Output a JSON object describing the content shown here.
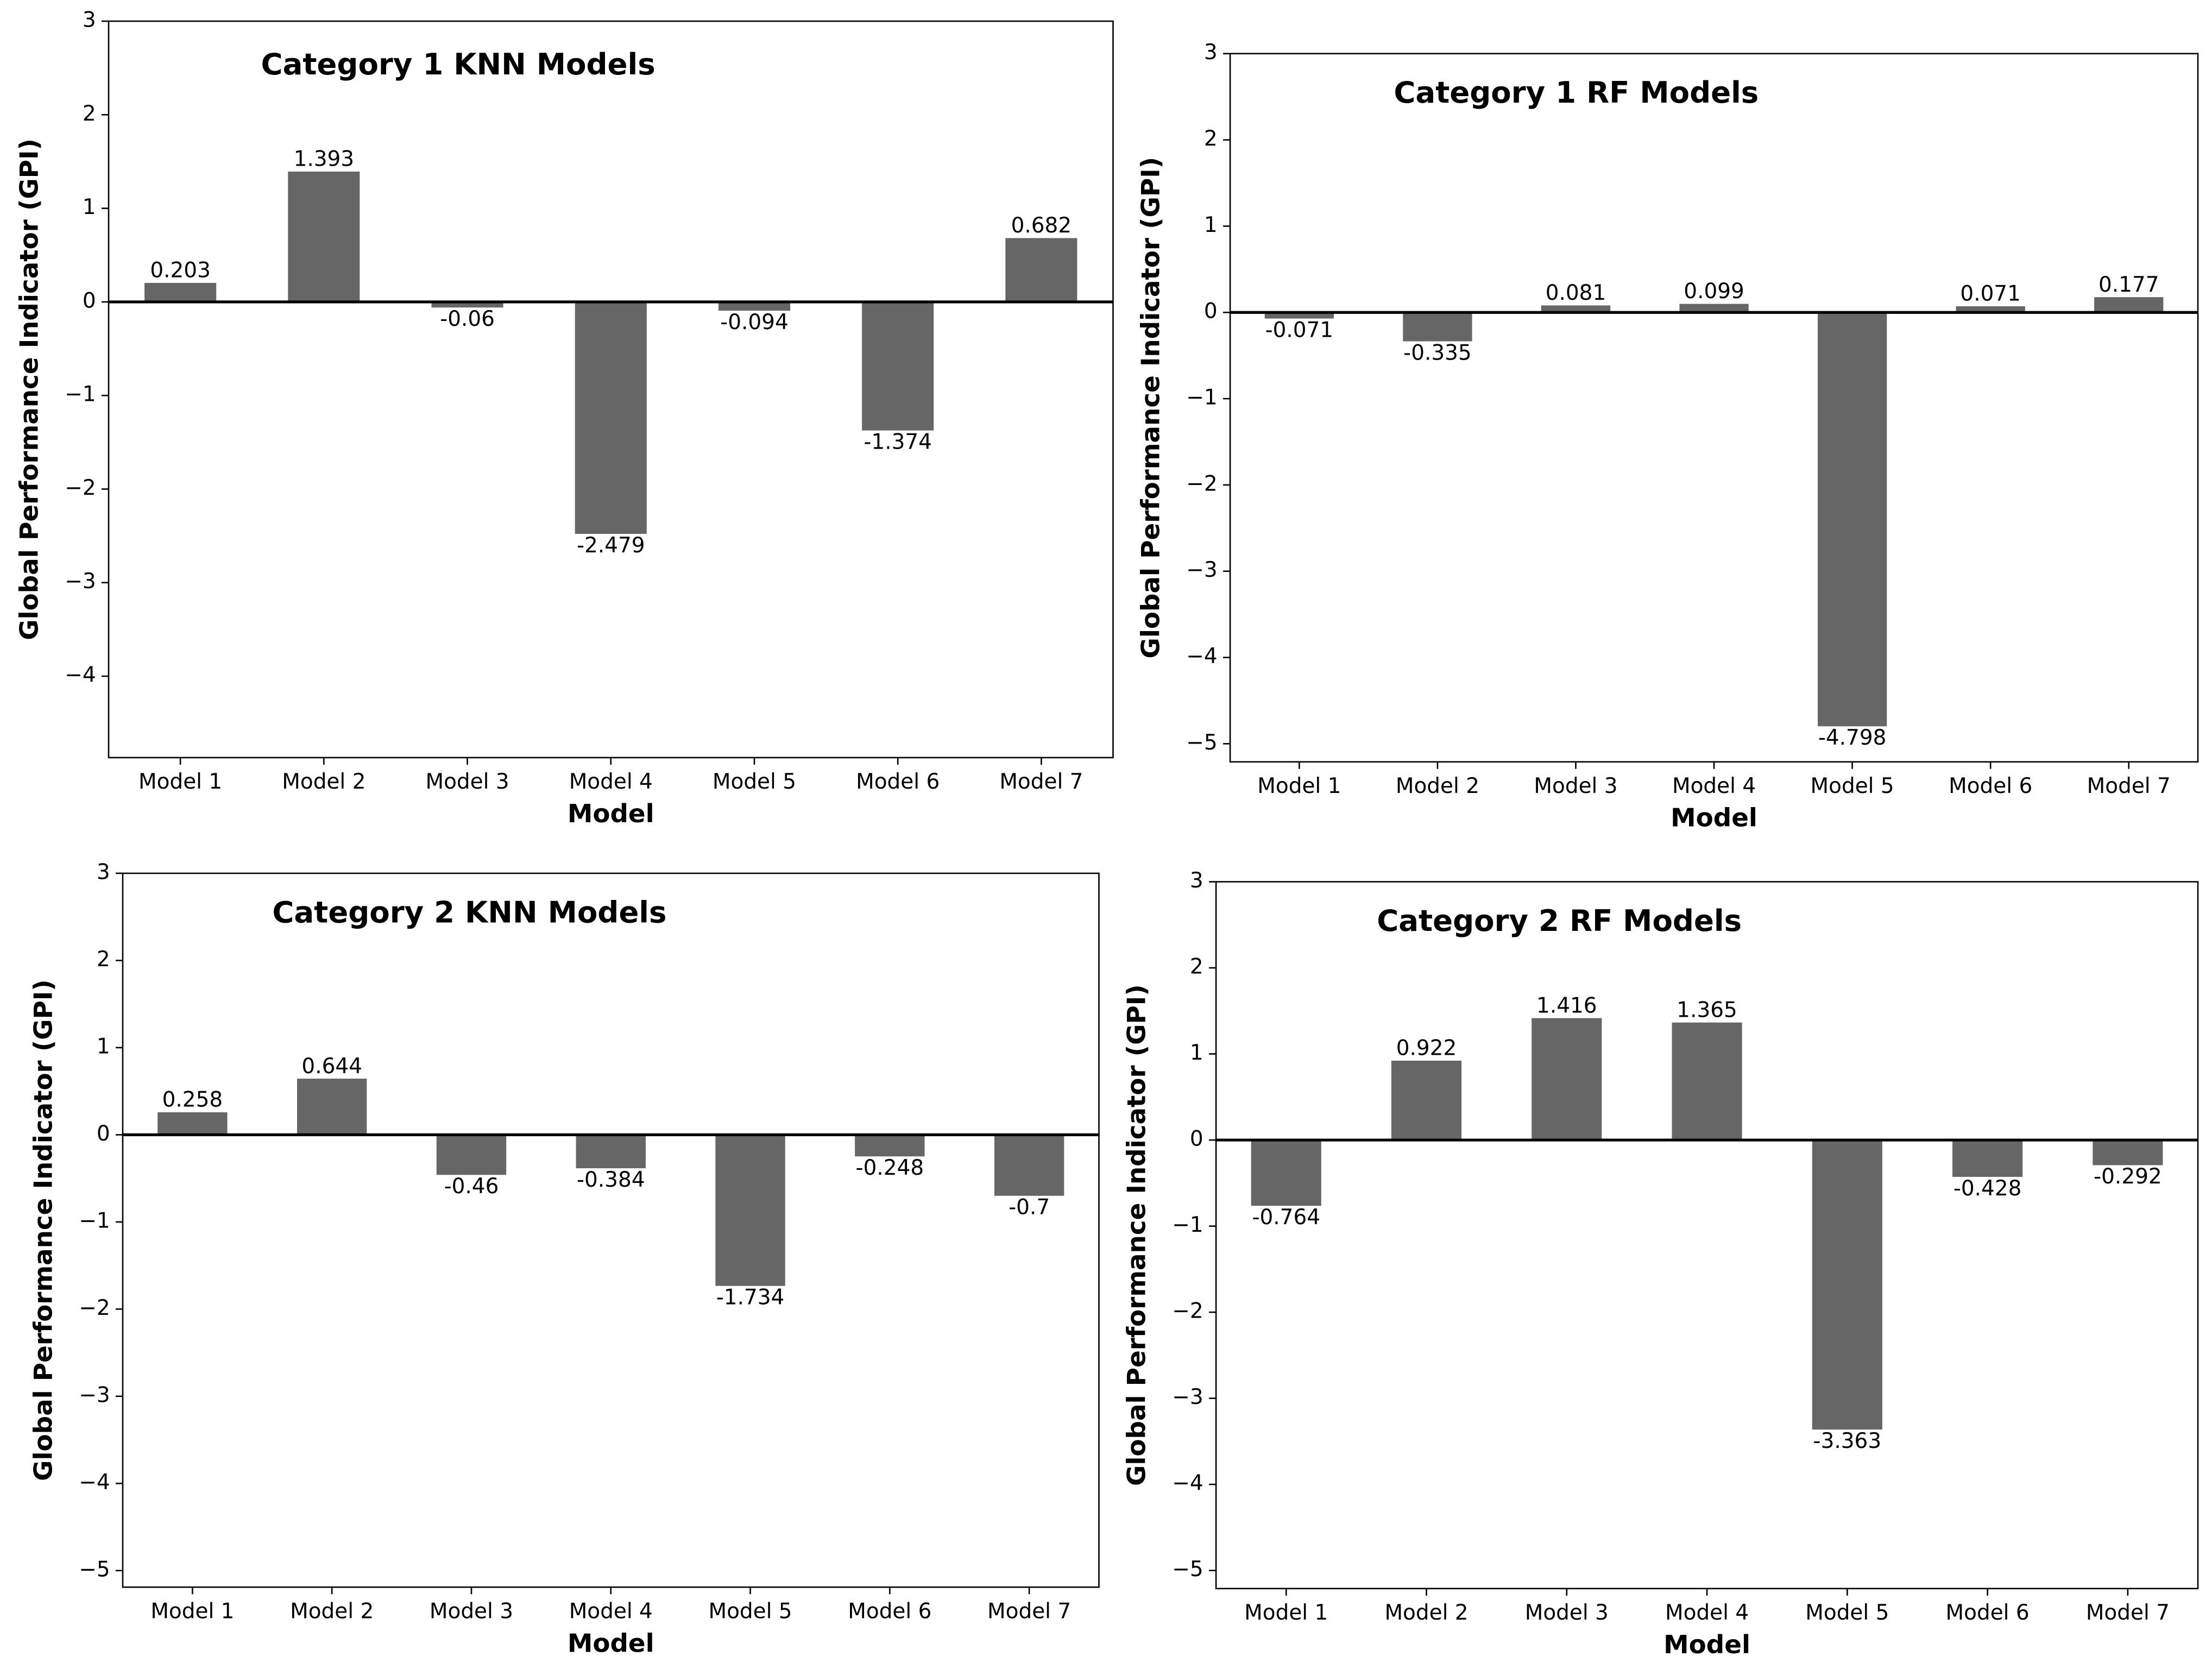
{
  "chart_data": [
    {
      "type": "bar",
      "title": "Category 1 KNN Models",
      "xlabel": "Model",
      "ylabel": "Global Performance Indicator (GPI)",
      "categories": [
        "Model 1",
        "Model 2",
        "Model 3",
        "Model 4",
        "Model 5",
        "Model 6",
        "Model 7"
      ],
      "values": [
        0.203,
        1.393,
        -0.06,
        -2.479,
        -0.094,
        -1.374,
        0.682
      ],
      "color": "#666666",
      "ylim": [
        -4.87,
        3
      ],
      "yticks": [
        {
          "value": -4,
          "label": "−4"
        },
        {
          "value": -3,
          "label": "−3"
        },
        {
          "value": -2,
          "label": "−2"
        },
        {
          "value": -1,
          "label": "−1"
        },
        0,
        1,
        2,
        3
      ]
    },
    {
      "type": "bar",
      "title": "Category 1 RF Models",
      "xlabel": "Model",
      "ylabel": "Global Performance Indicator (GPI)",
      "categories": [
        "Model 1",
        "Model 2",
        "Model 3",
        "Model 4",
        "Model 5",
        "Model 6",
        "Model 7"
      ],
      "values": [
        -0.071,
        -0.335,
        0.081,
        0.099,
        -4.798,
        0.071,
        0.177
      ],
      "color": "#666666",
      "ylim": [
        -5.21,
        3
      ],
      "yticks": [
        {
          "value": -5,
          "label": "−5"
        },
        {
          "value": -4,
          "label": "−4"
        },
        {
          "value": -3,
          "label": "−3"
        },
        {
          "value": -2,
          "label": "−2"
        },
        {
          "value": -1,
          "label": "−1"
        },
        0,
        1,
        2,
        3
      ]
    },
    {
      "type": "bar",
      "title": "Category 2 KNN Models",
      "xlabel": "Model",
      "ylabel": "Global Performance Indicator (GPI)",
      "categories": [
        "Model 1",
        "Model 2",
        "Model 3",
        "Model 4",
        "Model 5",
        "Model 6",
        "Model 7"
      ],
      "values": [
        0.258,
        0.644,
        -0.46,
        -0.384,
        -1.734,
        -0.248,
        -0.7
      ],
      "color": "#666666",
      "ylim": [
        -5.19,
        3
      ],
      "yticks": [
        {
          "value": -5,
          "label": "−5"
        },
        {
          "value": -4,
          "label": "−4"
        },
        {
          "value": -3,
          "label": "−3"
        },
        {
          "value": -2,
          "label": "−2"
        },
        {
          "value": -1,
          "label": "−1"
        },
        0,
        1,
        2,
        3
      ]
    },
    {
      "type": "bar",
      "title": "Category 2 RF Models",
      "xlabel": "Model",
      "ylabel": "Global Performance Indicator (GPI)",
      "categories": [
        "Model 1",
        "Model 2",
        "Model 3",
        "Model 4",
        "Model 5",
        "Model 6",
        "Model 7"
      ],
      "values": [
        -0.764,
        0.922,
        1.416,
        1.365,
        -3.363,
        -0.428,
        -0.292
      ],
      "color": "#666666",
      "ylim": [
        -5.21,
        3
      ],
      "yticks": [
        {
          "value": -5,
          "label": "−5"
        },
        {
          "value": -4,
          "label": "−4"
        },
        {
          "value": -3,
          "label": "−3"
        },
        {
          "value": -2,
          "label": "−2"
        },
        {
          "value": -1,
          "label": "−1"
        },
        0,
        1,
        2,
        3
      ]
    }
  ]
}
